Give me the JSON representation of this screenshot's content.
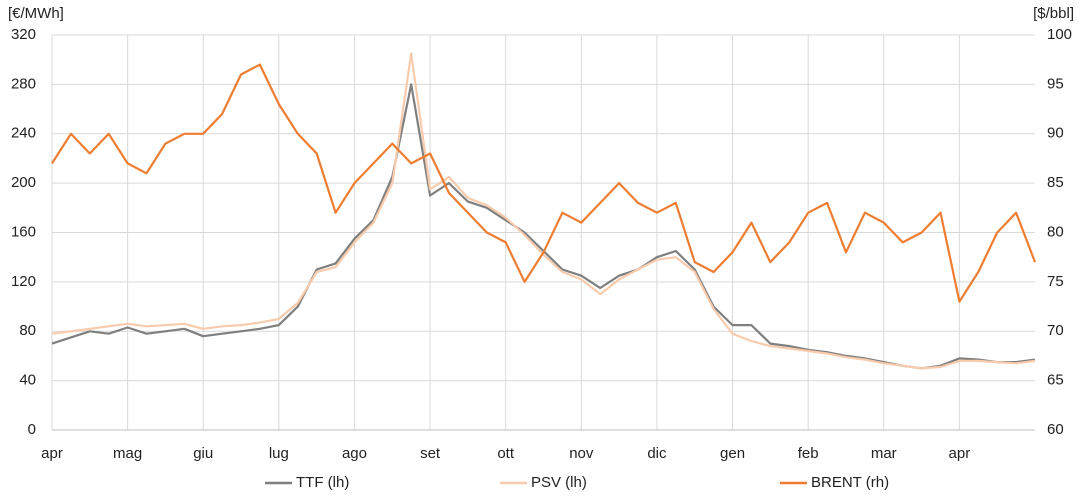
{
  "chart_data": {
    "type": "line",
    "y_label": "[€/MWh]",
    "y2_label": "[$/bbl]",
    "categories": [
      "apr",
      null,
      null,
      null,
      "mag",
      null,
      null,
      null,
      "giu",
      null,
      null,
      null,
      "lug",
      null,
      null,
      null,
      "ago",
      null,
      null,
      null,
      "set",
      null,
      null,
      null,
      "ott",
      null,
      null,
      null,
      "nov",
      null,
      null,
      null,
      "dic",
      null,
      null,
      null,
      "gen",
      null,
      null,
      null,
      "feb",
      null,
      null,
      null,
      "mar",
      null,
      null,
      null,
      "apr",
      null,
      null,
      null,
      null
    ],
    "series": [
      {
        "name": "TTF (lh)",
        "color": "#7f7f7f",
        "axis": "y",
        "values": [
          70,
          75,
          80,
          78,
          83,
          78,
          80,
          82,
          76,
          78,
          80,
          82,
          85,
          100,
          130,
          135,
          155,
          170,
          205,
          280,
          190,
          200,
          185,
          180,
          170,
          160,
          145,
          130,
          125,
          115,
          125,
          130,
          140,
          145,
          130,
          100,
          85,
          85,
          70,
          68,
          65,
          63,
          60,
          58,
          55,
          52,
          50,
          52,
          58,
          57,
          55,
          55,
          57
        ]
      },
      {
        "name": "PSV (lh)",
        "color": "#f8cbad",
        "axis": "y",
        "values": [
          78,
          80,
          82,
          84,
          86,
          84,
          85,
          86,
          82,
          84,
          85,
          87,
          90,
          103,
          128,
          132,
          152,
          168,
          200,
          305,
          195,
          205,
          188,
          182,
          172,
          158,
          142,
          128,
          122,
          110,
          122,
          130,
          138,
          140,
          128,
          98,
          78,
          72,
          68,
          66,
          64,
          62,
          59,
          57,
          54,
          52,
          50,
          51,
          56,
          56,
          55,
          54,
          56
        ]
      },
      {
        "name": "BRENT (rh)",
        "color": "#ed7d31",
        "axis": "y2",
        "values": [
          87,
          90,
          88,
          90,
          87,
          86,
          89,
          90,
          90,
          92,
          96,
          97,
          93,
          90,
          88,
          82,
          85,
          87,
          89,
          87,
          88,
          84,
          82,
          80,
          79,
          75,
          78,
          82,
          81,
          83,
          85,
          83,
          82,
          83,
          77,
          76,
          78,
          81,
          77,
          79,
          82,
          83,
          78,
          82,
          81,
          79,
          80,
          82,
          73,
          76,
          80,
          82,
          77
        ]
      }
    ],
    "ylim": [
      0,
      320
    ],
    "yticks": [
      0,
      40,
      80,
      120,
      160,
      200,
      240,
      280,
      320
    ],
    "y2lim": [
      60,
      100
    ],
    "y2ticks": [
      60,
      65,
      70,
      75,
      80,
      85,
      90,
      95,
      100
    ],
    "grid": true,
    "legend": "bottom"
  }
}
